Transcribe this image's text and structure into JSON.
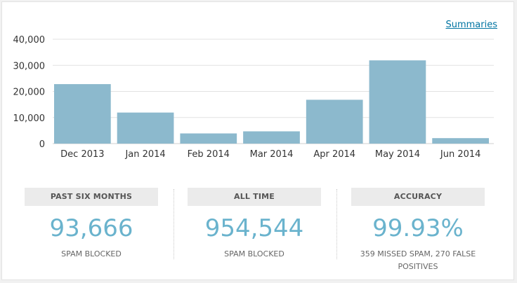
{
  "links": {
    "summaries": "Summaries"
  },
  "chart_data": {
    "type": "bar",
    "categories": [
      "Dec 2013",
      "Jan 2014",
      "Feb 2014",
      "Mar 2014",
      "Apr 2014",
      "May 2014",
      "Jun 2014"
    ],
    "values": [
      22800,
      11900,
      3900,
      4700,
      16800,
      31900,
      2100
    ],
    "yticks": [
      "0",
      "10,000",
      "20,000",
      "30,000",
      "40,000"
    ],
    "ylim": [
      0,
      40000
    ],
    "grid": true,
    "bar_color": "#8cb9cd"
  },
  "stats": [
    {
      "label": "PAST SIX MONTHS",
      "value": "93,666",
      "sub": "SPAM BLOCKED"
    },
    {
      "label": "ALL TIME",
      "value": "954,544",
      "sub": "SPAM BLOCKED"
    },
    {
      "label": "ACCURACY",
      "value": "99.93%",
      "sub": "359 MISSED SPAM, 270 FALSE POSITIVES"
    }
  ],
  "colors": {
    "accent": "#6ab3cd",
    "link": "#0074a2",
    "label_bg": "#ebebeb"
  }
}
